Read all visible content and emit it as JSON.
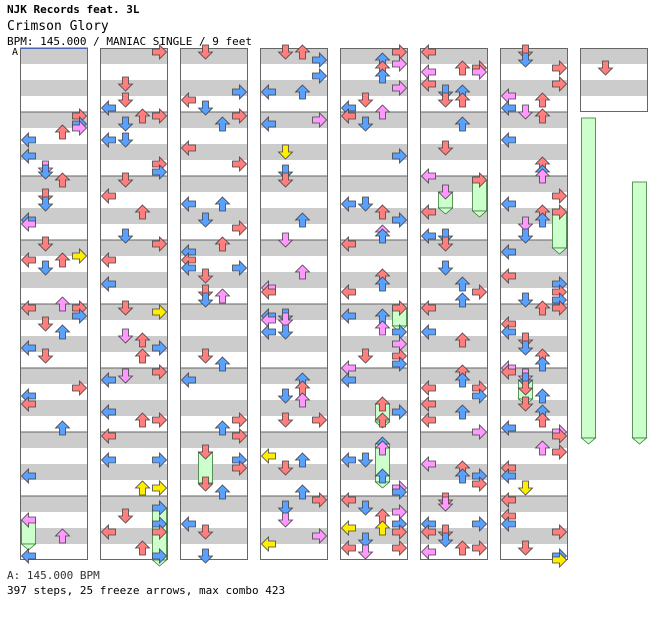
{
  "header": {
    "artist": "NJK Records feat. 3L",
    "title": "Crimson Glory",
    "info": "BPM: 145.000 / MANIAC SINGLE / 9 feet"
  },
  "bpm_marker": "A",
  "footer": {
    "bpm_line": "A: 145.000 BPM",
    "stats_line": "397 steps, 25 freeze arrows, max combo 423"
  },
  "colors": {
    "quarter": "#ff7f7f",
    "eighth": "#5aa0ff",
    "sixteenth": "#ff99ff",
    "other": "#ffee00",
    "freeze": "#ccffcc",
    "stripe": "#cccccc",
    "border": "#666666"
  },
  "chart": {
    "columns": 8,
    "measures_per_column": 8,
    "total_measures": 57,
    "lanes": [
      "left",
      "down",
      "up",
      "right"
    ]
  }
}
